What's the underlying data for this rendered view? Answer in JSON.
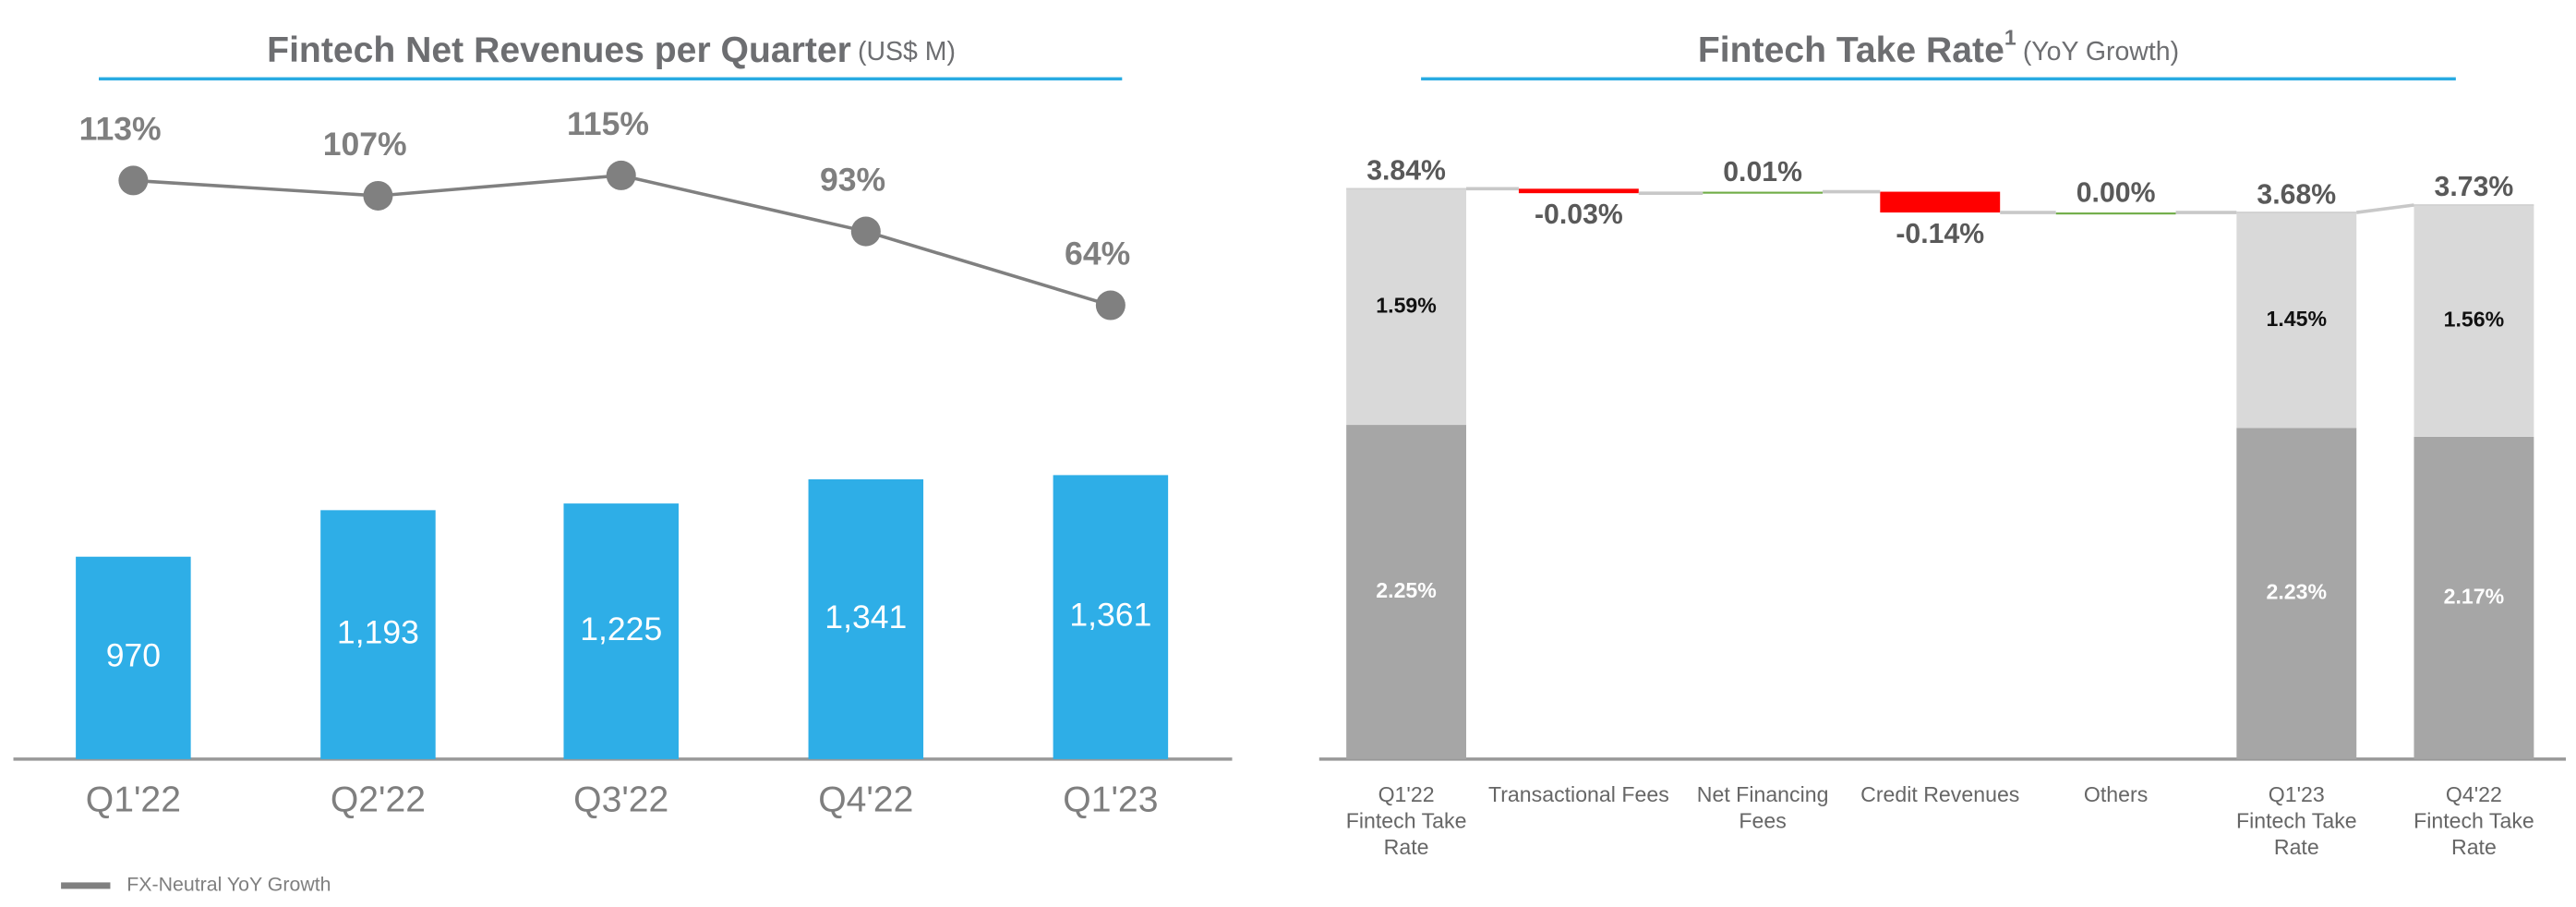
{
  "chart_data": [
    {
      "type": "bar-line",
      "title": "Fintech Net Revenues per Quarter",
      "subtitle": "(US$ M)",
      "categories": [
        "Q1'22",
        "Q2'22",
        "Q3'22",
        "Q4'22",
        "Q1'23"
      ],
      "series": [
        {
          "type": "bar",
          "color": "#2eaee7",
          "values": [
            970,
            1193,
            1225,
            1341,
            1361
          ],
          "value_labels": [
            "970",
            "1,193",
            "1,225",
            "1,341",
            "1,361"
          ]
        },
        {
          "type": "line",
          "name": "FX-Neutral YoY Growth",
          "color": "#808080",
          "values": [
            113,
            107,
            115,
            93,
            64
          ],
          "value_labels": [
            "113%",
            "107%",
            "115%",
            "93%",
            "64%"
          ]
        }
      ],
      "legend": "bottom-left"
    },
    {
      "type": "waterfall",
      "title": "Fintech Take Rate",
      "title_superscript": "1",
      "subtitle": "(YoY Growth)",
      "categories": [
        "Q1'22 Fintech Take Rate",
        "Transactional Fees",
        "Net Financing Fees",
        "Credit Revenues",
        "Others",
        "Q1'23 Fintech Take Rate",
        "Q4'22 Fintech Take Rate"
      ],
      "totals": [
        3.84,
        null,
        null,
        null,
        null,
        3.68,
        3.73
      ],
      "total_labels": [
        "3.84%",
        null,
        null,
        null,
        null,
        "3.68%",
        "3.73%"
      ],
      "segments": [
        {
          "color": "#a6a6a6",
          "values": [
            2.25,
            null,
            null,
            null,
            null,
            2.23,
            2.17
          ],
          "value_labels": [
            "2.25%",
            null,
            null,
            null,
            null,
            "2.23%",
            "2.17%"
          ]
        },
        {
          "color": "#d9d9d9",
          "values": [
            1.59,
            null,
            null,
            null,
            null,
            1.45,
            1.56
          ],
          "value_labels": [
            "1.59%",
            null,
            null,
            null,
            null,
            "1.45%",
            "1.56%"
          ]
        }
      ],
      "changes": [
        null,
        -0.03,
        0.01,
        -0.14,
        0.0,
        null,
        null
      ],
      "change_labels": [
        null,
        "-0.03%",
        "0.01%",
        "-0.14%",
        "0.00%",
        null,
        null
      ],
      "increase_color": "#70ad47",
      "decrease_color": "#ff0000"
    }
  ]
}
